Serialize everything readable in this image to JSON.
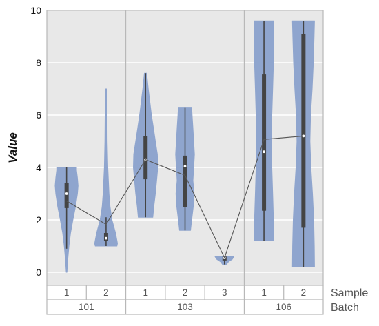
{
  "chart_data": {
    "type": "violin",
    "title": "",
    "xlabel": "",
    "ylabel": "Value",
    "ylim": [
      -0.5,
      10
    ],
    "y_ticks": [
      0,
      2,
      4,
      6,
      8,
      10
    ],
    "grid": true,
    "background": "#e8e8e8",
    "violin_color": "#8fa5ce",
    "group_row_labels": [
      "Sample",
      "Batch"
    ],
    "batches": [
      {
        "label": "101",
        "samples": [
          "1",
          "2"
        ]
      },
      {
        "label": "103",
        "samples": [
          "1",
          "2",
          "3"
        ]
      },
      {
        "label": "106",
        "samples": [
          "1",
          "2"
        ]
      }
    ],
    "violins": [
      {
        "batch": "101",
        "sample": "1",
        "min": 0.0,
        "q1": 2.45,
        "median": 3.0,
        "q3": 3.4,
        "max": 4.0,
        "whisker_low": 0.9,
        "whisker_high": 4.0,
        "mean": 2.72,
        "density": [
          [
            0.0,
            0.02
          ],
          [
            0.5,
            0.06
          ],
          [
            1.0,
            0.12
          ],
          [
            1.5,
            0.2
          ],
          [
            2.0,
            0.32
          ],
          [
            2.5,
            0.45
          ],
          [
            3.0,
            0.55
          ],
          [
            3.3,
            0.58
          ],
          [
            3.6,
            0.55
          ],
          [
            3.9,
            0.5
          ],
          [
            4.0,
            0.5
          ]
        ]
      },
      {
        "batch": "101",
        "sample": "2",
        "min": 1.0,
        "q1": 1.2,
        "median": 1.3,
        "q3": 1.5,
        "max": 7.0,
        "whisker_low": 1.0,
        "whisker_high": 2.1,
        "mean": 1.83,
        "density": [
          [
            1.0,
            0.55
          ],
          [
            1.1,
            0.58
          ],
          [
            1.5,
            0.48
          ],
          [
            2.0,
            0.3
          ],
          [
            2.5,
            0.2
          ],
          [
            3.0,
            0.15
          ],
          [
            4.0,
            0.09
          ],
          [
            5.0,
            0.06
          ],
          [
            6.0,
            0.05
          ],
          [
            7.0,
            0.04
          ]
        ]
      },
      {
        "batch": "103",
        "sample": "1",
        "min": 2.1,
        "q1": 3.55,
        "median": 4.3,
        "q3": 5.2,
        "max": 7.6,
        "whisker_low": 2.1,
        "whisker_high": 7.6,
        "mean": 4.3,
        "density": [
          [
            2.1,
            0.37
          ],
          [
            2.5,
            0.42
          ],
          [
            3.0,
            0.5
          ],
          [
            3.5,
            0.56
          ],
          [
            4.0,
            0.62
          ],
          [
            4.5,
            0.6
          ],
          [
            5.0,
            0.5
          ],
          [
            5.5,
            0.4
          ],
          [
            6.0,
            0.3
          ],
          [
            6.5,
            0.22
          ],
          [
            7.0,
            0.14
          ],
          [
            7.6,
            0.06
          ]
        ]
      },
      {
        "batch": "103",
        "sample": "2",
        "min": 1.6,
        "q1": 2.5,
        "median": 4.05,
        "q3": 4.45,
        "max": 6.3,
        "whisker_low": 1.6,
        "whisker_high": 6.3,
        "mean": 3.7,
        "density": [
          [
            1.6,
            0.28
          ],
          [
            2.0,
            0.34
          ],
          [
            2.5,
            0.42
          ],
          [
            3.0,
            0.46
          ],
          [
            3.5,
            0.4
          ],
          [
            4.0,
            0.44
          ],
          [
            4.5,
            0.48
          ],
          [
            5.0,
            0.44
          ],
          [
            5.5,
            0.4
          ],
          [
            6.0,
            0.36
          ],
          [
            6.3,
            0.34
          ]
        ]
      },
      {
        "batch": "103",
        "sample": "3",
        "min": 0.3,
        "q1": 0.45,
        "median": 0.55,
        "q3": 0.6,
        "max": 0.6,
        "whisker_low": 0.3,
        "whisker_high": 0.6,
        "mean": 0.55,
        "density": [
          [
            0.3,
            0.1
          ],
          [
            0.4,
            0.2
          ],
          [
            0.5,
            0.4
          ],
          [
            0.6,
            0.48
          ]
        ]
      },
      {
        "batch": "106",
        "sample": "1",
        "min": 1.2,
        "q1": 2.35,
        "median": 4.6,
        "q3": 7.55,
        "max": 9.6,
        "whisker_low": 1.2,
        "whisker_high": 9.6,
        "mean": 5.07,
        "density": [
          [
            1.2,
            0.48
          ],
          [
            2.0,
            0.48
          ],
          [
            3.0,
            0.44
          ],
          [
            4.0,
            0.4
          ],
          [
            5.0,
            0.38
          ],
          [
            6.0,
            0.4
          ],
          [
            7.0,
            0.44
          ],
          [
            8.0,
            0.48
          ],
          [
            9.0,
            0.49
          ],
          [
            9.6,
            0.5
          ]
        ]
      },
      {
        "batch": "106",
        "sample": "2",
        "min": 0.2,
        "q1": 1.7,
        "median": 5.2,
        "q3": 9.1,
        "max": 9.6,
        "whisker_low": 0.2,
        "whisker_high": 9.6,
        "mean": 5.2,
        "density": [
          [
            0.2,
            0.56
          ],
          [
            1.0,
            0.55
          ],
          [
            2.0,
            0.52
          ],
          [
            3.0,
            0.46
          ],
          [
            4.0,
            0.38
          ],
          [
            5.0,
            0.33
          ],
          [
            6.0,
            0.36
          ],
          [
            7.0,
            0.44
          ],
          [
            8.0,
            0.5
          ],
          [
            9.0,
            0.54
          ],
          [
            9.6,
            0.56
          ]
        ]
      }
    ]
  }
}
